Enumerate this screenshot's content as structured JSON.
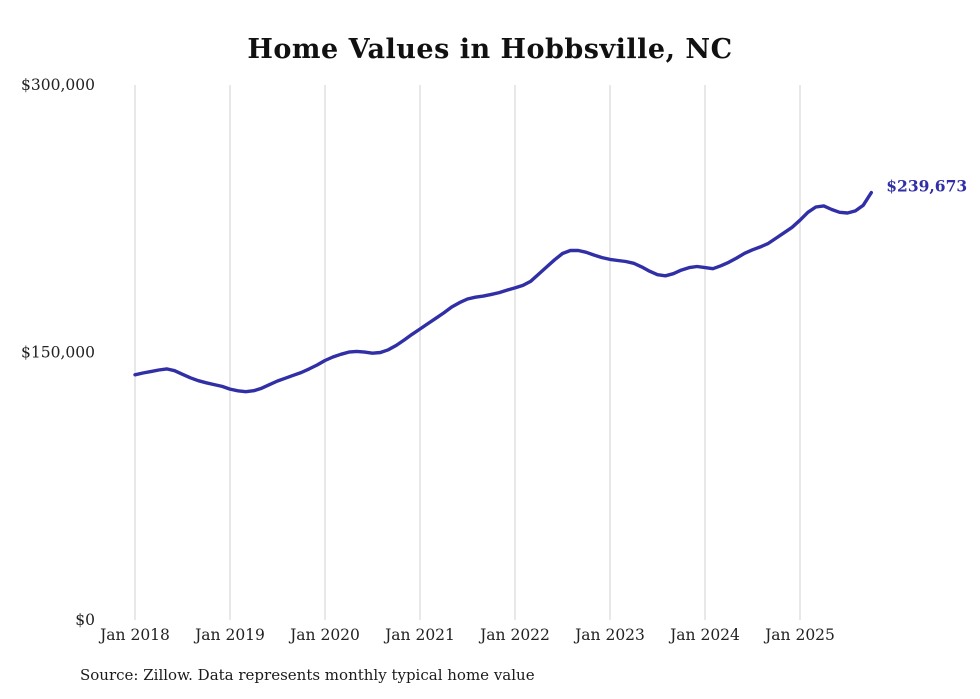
{
  "page": {
    "background": "#ffffff"
  },
  "chart_data": {
    "type": "line",
    "title": "Home Values in Hobbsville, NC",
    "series_name": "Monthly typical home value",
    "x_start": "Jan 2018",
    "x_interval_months": 1,
    "x_ticks": [
      "Jan 2018",
      "Jan 2019",
      "Jan 2020",
      "Jan 2021",
      "Jan 2022",
      "Jan 2023",
      "Jan 2024",
      "Jan 2025"
    ],
    "y_ticks": [
      {
        "label": "$0",
        "value": 0
      },
      {
        "label": "$150,000",
        "value": 150000
      },
      {
        "label": "$300,000",
        "value": 300000
      }
    ],
    "ylim": [
      0,
      300000
    ],
    "grid": "vertical-only",
    "legend": "none",
    "values": [
      137500,
      138500,
      139300,
      140200,
      140800,
      139800,
      137800,
      135800,
      134200,
      133000,
      132000,
      131000,
      129500,
      128500,
      128000,
      128600,
      130000,
      132000,
      134000,
      135600,
      137200,
      138800,
      140800,
      143000,
      145500,
      147500,
      149000,
      150200,
      150600,
      150200,
      149600,
      150000,
      151500,
      154000,
      157000,
      160200,
      163200,
      166200,
      169200,
      172200,
      175500,
      178000,
      180000,
      181000,
      181600,
      182600,
      183600,
      185000,
      186200,
      187600,
      190000,
      194000,
      198000,
      202000,
      205500,
      207200,
      207200,
      206200,
      204600,
      203200,
      202200,
      201600,
      201000,
      200000,
      198000,
      195600,
      193600,
      193000,
      194200,
      196200,
      197600,
      198200,
      197600,
      197000,
      198600,
      200600,
      203000,
      205600,
      207600,
      209200,
      211200,
      214200,
      217200,
      220200,
      224200,
      228600,
      231600,
      232200,
      230200,
      228600,
      228200,
      229400,
      232600,
      239673
    ],
    "end_label": "$239,673",
    "line_color": "#312fa6",
    "grid_color": "#d8d8d8",
    "source": "Source: Zillow. Data represents monthly typical home value"
  }
}
